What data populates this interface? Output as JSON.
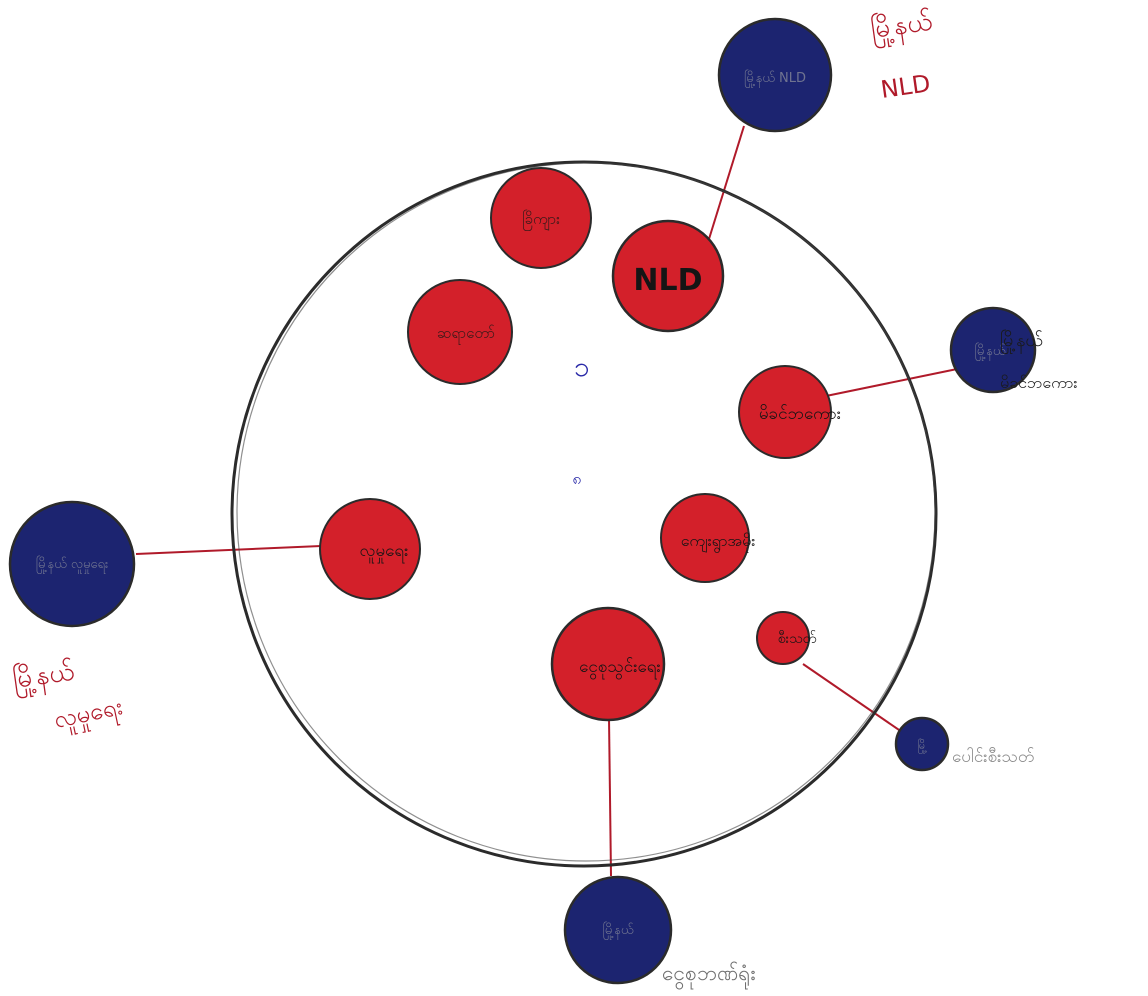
{
  "colors": {
    "paper": "#ffffff",
    "outline": "#2b2b2b",
    "inner_fill": "#d3202a",
    "outer_fill": "#1c2470",
    "connector": "#b01a2a",
    "label_red": "#b01a2a",
    "label_gray": "#6f6f6f",
    "pen_blue": "#2a2aa8"
  },
  "marks": {
    "center_one": "၁",
    "center_small": "၈"
  },
  "inner_nodes": [
    {
      "id": "top-left",
      "label": "ခြိကျား"
    },
    {
      "id": "nld",
      "label": "NLD"
    },
    {
      "id": "left-upper",
      "label": "ဆရာတော်"
    },
    {
      "id": "right-mid",
      "label": "မိခင်ဘကေား"
    },
    {
      "id": "left-mid",
      "label": "လူမှုရေး"
    },
    {
      "id": "center-low",
      "label": "ကျေးရွာအမိုး"
    },
    {
      "id": "right-small",
      "label": "စီးသတ်"
    },
    {
      "id": "bottom",
      "label": "ငွေစုသွင်းရေး"
    }
  ],
  "outer_nodes": [
    {
      "id": "top-right",
      "inner_text": "မြို့နယ် NLD",
      "caption": [
        "မြို့နယ်",
        "NLD"
      ]
    },
    {
      "id": "right",
      "inner_text": "မြို့နယ်",
      "caption": [
        "မြို့နယ်",
        "မိခင်ဘကေား"
      ]
    },
    {
      "id": "left",
      "inner_text": "မြို့နယ် လူမှုရေး",
      "caption": [
        "မြို့နယ်",
        "လူမှုရေး"
      ]
    },
    {
      "id": "lower-right",
      "inner_text": "မြို့",
      "caption": [
        "ပေါင်းစီးသတ်"
      ]
    },
    {
      "id": "bottom",
      "inner_text": "မြို့နယ်",
      "caption": [
        "ငွေစုဘဏ်ရုံး"
      ]
    }
  ]
}
